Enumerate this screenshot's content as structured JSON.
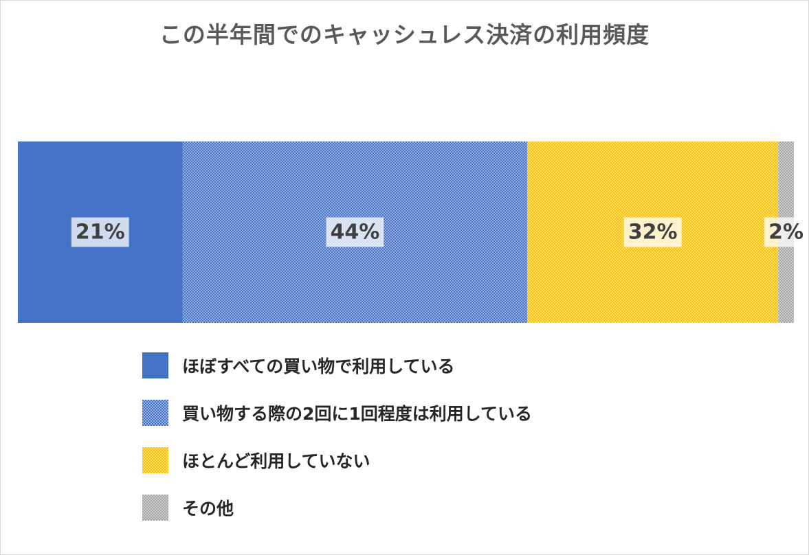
{
  "chart_data": {
    "type": "bar",
    "orientation": "horizontal",
    "stacked": "100%",
    "title": "この半年間でのキャッシュレス決済の利用頻度",
    "categories": [
      ""
    ],
    "series": [
      {
        "name": "ほぼすべての買い物で利用している",
        "values": [
          21
        ],
        "label": "21%",
        "color": "#4472c4",
        "pattern": "solid"
      },
      {
        "name": "買い物する際の2回に1回程度は利用している",
        "values": [
          44
        ],
        "label": "44%",
        "color": "#4472c4",
        "pattern": "checker"
      },
      {
        "name": "ほとんど利用していない",
        "values": [
          32
        ],
        "label": "32%",
        "color": "#ffc000",
        "pattern": "checker"
      },
      {
        "name": "その他",
        "values": [
          2
        ],
        "label": "2%",
        "color": "#a5a5a5",
        "pattern": "checker"
      }
    ],
    "xlim": [
      0,
      100
    ],
    "grid": false,
    "legend_position": "bottom"
  }
}
